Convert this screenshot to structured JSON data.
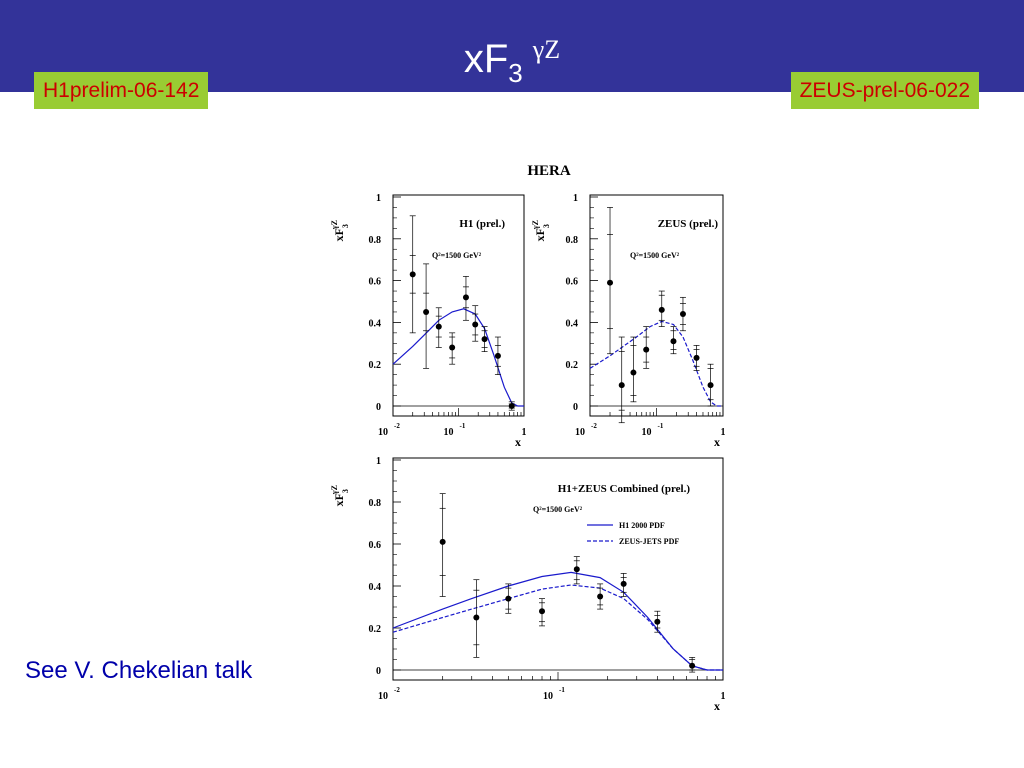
{
  "slide": {
    "title_main": "xF",
    "title_sub": "3",
    "title_sup": "γZ",
    "tag_left": "H1prelim-06-142",
    "tag_right": "ZEUS-prel-06-022",
    "note": "See V. Chekelian talk",
    "colors": {
      "header": "#333399",
      "tag_bg": "#99cc33",
      "tag_text": "#cc0000",
      "note": "#0000aa",
      "curve": "#1a1acc"
    }
  },
  "chart_data": [
    {
      "type": "scatter",
      "figure_title": "HERA",
      "panel_title": "H1 (prel.)",
      "q2_label": "Q²=1500 GeV²",
      "ylabel": "xF3γZ",
      "xlabel": "x",
      "xscale": "log",
      "xlim": [
        0.01,
        1
      ],
      "ylim": [
        0,
        1
      ],
      "x_ticks": [
        "10-2",
        "10-1",
        "1"
      ],
      "y_ticks": [
        "0",
        "0.2",
        "0.4",
        "0.6",
        "0.8",
        "1"
      ],
      "points": [
        {
          "x": 0.02,
          "y": 0.63,
          "inner": [
            0.54,
            0.72
          ],
          "outer": [
            0.35,
            0.91
          ]
        },
        {
          "x": 0.032,
          "y": 0.45,
          "inner": [
            0.36,
            0.54
          ],
          "outer": [
            0.18,
            0.68
          ]
        },
        {
          "x": 0.05,
          "y": 0.38,
          "inner": [
            0.33,
            0.43
          ],
          "outer": [
            0.28,
            0.47
          ]
        },
        {
          "x": 0.08,
          "y": 0.28,
          "inner": [
            0.23,
            0.33
          ],
          "outer": [
            0.2,
            0.35
          ]
        },
        {
          "x": 0.13,
          "y": 0.52,
          "inner": [
            0.47,
            0.57
          ],
          "outer": [
            0.41,
            0.62
          ]
        },
        {
          "x": 0.18,
          "y": 0.39,
          "inner": [
            0.34,
            0.44
          ],
          "outer": [
            0.31,
            0.48
          ]
        },
        {
          "x": 0.25,
          "y": 0.32,
          "inner": [
            0.28,
            0.36
          ],
          "outer": [
            0.26,
            0.38
          ]
        },
        {
          "x": 0.4,
          "y": 0.24,
          "inner": [
            0.19,
            0.29
          ],
          "outer": [
            0.15,
            0.33
          ]
        },
        {
          "x": 0.65,
          "y": 0.0,
          "inner": [
            -0.01,
            0.01
          ],
          "outer": [
            -0.02,
            0.02
          ]
        }
      ],
      "curves": [
        {
          "style": "solid",
          "x": [
            0.01,
            0.02,
            0.03,
            0.05,
            0.08,
            0.12,
            0.18,
            0.25,
            0.35,
            0.5,
            0.65,
            0.8,
            1.0
          ],
          "y": [
            0.2,
            0.285,
            0.34,
            0.41,
            0.45,
            0.465,
            0.44,
            0.37,
            0.24,
            0.09,
            0.015,
            0.0,
            0.0
          ]
        }
      ]
    },
    {
      "type": "scatter",
      "panel_title": "ZEUS (prel.)",
      "q2_label": "Q²=1500 GeV²",
      "ylabel": "xF3γZ",
      "xlabel": "x",
      "xscale": "log",
      "xlim": [
        0.01,
        1
      ],
      "ylim": [
        0,
        1
      ],
      "x_ticks": [
        "10-2",
        "10-1",
        "1"
      ],
      "y_ticks": [
        "0",
        "0.2",
        "0.4",
        "0.6",
        "0.8",
        "1"
      ],
      "points": [
        {
          "x": 0.02,
          "y": 0.59,
          "inner": [
            0.37,
            0.82
          ],
          "outer": [
            0.25,
            0.95
          ]
        },
        {
          "x": 0.03,
          "y": 0.1,
          "inner": [
            -0.02,
            0.26
          ],
          "outer": [
            -0.08,
            0.33
          ]
        },
        {
          "x": 0.045,
          "y": 0.16,
          "inner": [
            0.05,
            0.29
          ],
          "outer": [
            0.02,
            0.33
          ]
        },
        {
          "x": 0.07,
          "y": 0.27,
          "inner": [
            0.21,
            0.33
          ],
          "outer": [
            0.18,
            0.38
          ]
        },
        {
          "x": 0.12,
          "y": 0.46,
          "inner": [
            0.41,
            0.53
          ],
          "outer": [
            0.38,
            0.55
          ]
        },
        {
          "x": 0.18,
          "y": 0.31,
          "inner": [
            0.27,
            0.36
          ],
          "outer": [
            0.25,
            0.38
          ]
        },
        {
          "x": 0.25,
          "y": 0.44,
          "inner": [
            0.39,
            0.49
          ],
          "outer": [
            0.36,
            0.52
          ]
        },
        {
          "x": 0.4,
          "y": 0.23,
          "inner": [
            0.19,
            0.27
          ],
          "outer": [
            0.17,
            0.29
          ]
        },
        {
          "x": 0.65,
          "y": 0.1,
          "inner": [
            0.03,
            0.18
          ],
          "outer": [
            0.0,
            0.2
          ]
        }
      ],
      "curves": [
        {
          "style": "dashed",
          "x": [
            0.01,
            0.02,
            0.03,
            0.05,
            0.08,
            0.12,
            0.18,
            0.25,
            0.35,
            0.5,
            0.65,
            0.8,
            1.0
          ],
          "y": [
            0.18,
            0.24,
            0.28,
            0.33,
            0.38,
            0.405,
            0.39,
            0.33,
            0.22,
            0.09,
            0.02,
            0.0,
            0.0
          ]
        }
      ]
    },
    {
      "type": "scatter",
      "panel_title": "H1+ZEUS Combined (prel.)",
      "q2_label": "Q²=1500 GeV²",
      "ylabel": "xF3γZ",
      "xlabel": "x",
      "xscale": "log",
      "xlim": [
        0.01,
        1
      ],
      "ylim": [
        0,
        1
      ],
      "x_ticks": [
        "10-2",
        "10-1",
        "1"
      ],
      "y_ticks": [
        "0",
        "0.2",
        "0.4",
        "0.6",
        "0.8",
        "1"
      ],
      "legend": [
        {
          "name": "H1 2000 PDF",
          "style": "solid"
        },
        {
          "name": "ZEUS-JETS PDF",
          "style": "dashed"
        }
      ],
      "points": [
        {
          "x": 0.02,
          "y": 0.61,
          "inner": [
            0.45,
            0.77
          ],
          "outer": [
            0.35,
            0.84
          ]
        },
        {
          "x": 0.032,
          "y": 0.25,
          "inner": [
            0.12,
            0.38
          ],
          "outer": [
            0.06,
            0.43
          ]
        },
        {
          "x": 0.05,
          "y": 0.34,
          "inner": [
            0.29,
            0.39
          ],
          "outer": [
            0.27,
            0.41
          ]
        },
        {
          "x": 0.08,
          "y": 0.28,
          "inner": [
            0.23,
            0.32
          ],
          "outer": [
            0.21,
            0.34
          ]
        },
        {
          "x": 0.13,
          "y": 0.48,
          "inner": [
            0.43,
            0.52
          ],
          "outer": [
            0.41,
            0.54
          ]
        },
        {
          "x": 0.18,
          "y": 0.35,
          "inner": [
            0.31,
            0.39
          ],
          "outer": [
            0.29,
            0.41
          ]
        },
        {
          "x": 0.25,
          "y": 0.41,
          "inner": [
            0.37,
            0.44
          ],
          "outer": [
            0.35,
            0.46
          ]
        },
        {
          "x": 0.4,
          "y": 0.23,
          "inner": [
            0.2,
            0.26
          ],
          "outer": [
            0.18,
            0.28
          ]
        },
        {
          "x": 0.65,
          "y": 0.02,
          "inner": [
            0.0,
            0.05
          ],
          "outer": [
            -0.01,
            0.06
          ]
        }
      ],
      "curves": [
        {
          "style": "solid",
          "x": [
            0.01,
            0.02,
            0.03,
            0.05,
            0.08,
            0.12,
            0.18,
            0.25,
            0.35,
            0.5,
            0.65,
            0.8,
            1.0
          ],
          "y": [
            0.2,
            0.29,
            0.34,
            0.4,
            0.445,
            0.465,
            0.44,
            0.37,
            0.25,
            0.1,
            0.02,
            0.0,
            0.0
          ]
        },
        {
          "style": "dashed",
          "x": [
            0.01,
            0.02,
            0.03,
            0.05,
            0.08,
            0.12,
            0.18,
            0.25,
            0.35,
            0.5,
            0.65,
            0.8,
            1.0
          ],
          "y": [
            0.18,
            0.25,
            0.29,
            0.34,
            0.385,
            0.405,
            0.39,
            0.34,
            0.24,
            0.1,
            0.02,
            0.0,
            0.0
          ]
        }
      ]
    }
  ]
}
